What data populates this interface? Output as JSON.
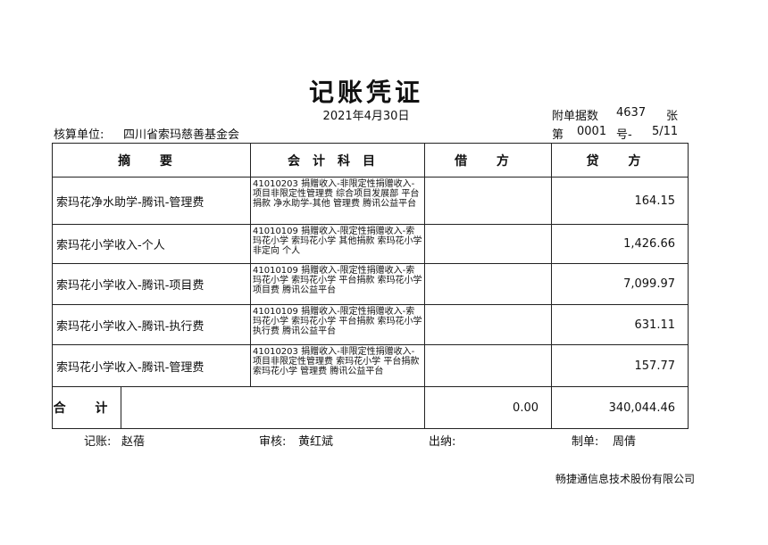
{
  "header": {
    "title": "记账凭证",
    "date": "2021年4月30日",
    "attachments_label": "附单据数",
    "attachments": "4637",
    "attachments_unit": "张",
    "unit_label": "核算单位:",
    "unit": "四川省索玛慈善基金会",
    "number_label": "第",
    "number": "0001",
    "number_sep": "号-",
    "page": "5/11"
  },
  "table": {
    "columns": [
      "摘 要",
      "会计科目",
      "借 方",
      "贷 方"
    ],
    "rows": [
      [
        "索玛花净水助学-腾讯-管理费",
        "41010203 捐赠收入-非限定性捐赠收入-项目非限定性管理费 综合项目发展部 平台捐款 净水助学-其他 管理费 腾讯公益平台",
        "",
        "164.15"
      ],
      [
        "索玛花小学收入-个人",
        "41010109 捐赠收入-限定性捐赠收入-索玛花小学 索玛花小学 其他捐款 索玛花小学 非定向 个人",
        "",
        "1,426.66"
      ],
      [
        "索玛花小学收入-腾讯-项目费",
        "41010109 捐赠收入-限定性捐赠收入-索玛花小学 索玛花小学 平台捐款 索玛花小学 项目费 腾讯公益平台",
        "",
        "7,099.97"
      ],
      [
        "索玛花小学收入-腾讯-执行费",
        "41010109 捐赠收入-限定性捐赠收入-索玛花小学 索玛花小学 平台捐款 索玛花小学 执行费 腾讯公益平台",
        "",
        "631.11"
      ],
      [
        "索玛花小学收入-腾讯-管理费",
        "41010203 捐赠收入-非限定性捐赠收入-项目非限定性管理费 索玛花小学 平台捐款 索玛花小学 管理费 腾讯公益平台",
        "",
        "157.77"
      ]
    ],
    "total_label": "合 计",
    "total_debit": "0.00",
    "total_credit": "340,044.46"
  },
  "footer": {
    "bookkeeper_label": "记账:",
    "bookkeeper": "赵蓓",
    "reviewer_label": "审核:",
    "reviewer": "黄红斌",
    "cashier_label": "出纳:",
    "maker_label": "制单:",
    "maker": "周倩",
    "company": "畅捷通信息技术股份有限公司"
  }
}
